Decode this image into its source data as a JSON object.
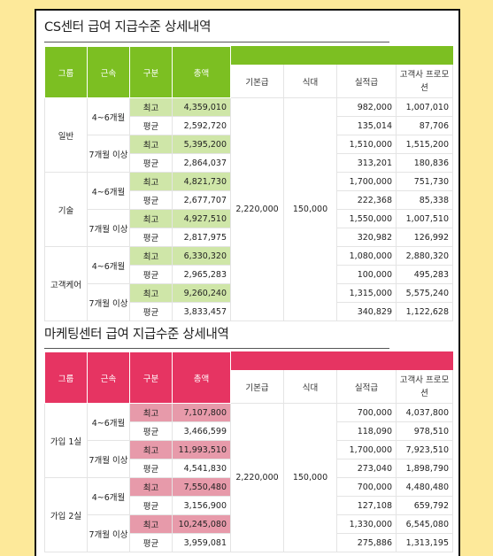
{
  "theme": {
    "cs_header": "#7cbf22",
    "cs_high": "#cfe6a8",
    "mk_header": "#e63462",
    "mk_high": "#e79aaa"
  },
  "cs": {
    "title": "CS센터 급여 지급수준 상세내역",
    "headers": {
      "group": "그룹",
      "tenure": "근속",
      "type": "구분",
      "amount": "총액",
      "base": "기본급",
      "meal": "식대",
      "perf": "실적급",
      "promo": "고객사 프로모션"
    },
    "base": "2,220,000",
    "meal": "150,000",
    "groups": [
      {
        "name": "일반",
        "tenures": [
          {
            "label": "4~6개월",
            "rows": [
              {
                "kind": "최고",
                "total": "4,359,010",
                "perf": "982,000",
                "promo": "1,007,010"
              },
              {
                "kind": "평균",
                "total": "2,592,720",
                "perf": "135,014",
                "promo": "87,706"
              }
            ]
          },
          {
            "label": "7개월 이상",
            "rows": [
              {
                "kind": "최고",
                "total": "5,395,200",
                "perf": "1,510,000",
                "promo": "1,515,200"
              },
              {
                "kind": "평균",
                "total": "2,864,037",
                "perf": "313,201",
                "promo": "180,836"
              }
            ]
          }
        ]
      },
      {
        "name": "기술",
        "tenures": [
          {
            "label": "4~6개월",
            "rows": [
              {
                "kind": "최고",
                "total": "4,821,730",
                "perf": "1,700,000",
                "promo": "751,730"
              },
              {
                "kind": "평균",
                "total": "2,677,707",
                "perf": "222,368",
                "promo": "85,338"
              }
            ]
          },
          {
            "label": "7개월 이상",
            "rows": [
              {
                "kind": "최고",
                "total": "4,927,510",
                "perf": "1,550,000",
                "promo": "1,007,510"
              },
              {
                "kind": "평균",
                "total": "2,817,975",
                "perf": "320,982",
                "promo": "126,992"
              }
            ]
          }
        ]
      },
      {
        "name": "고객케어",
        "tenures": [
          {
            "label": "4~6개월",
            "rows": [
              {
                "kind": "최고",
                "total": "6,330,320",
                "perf": "1,080,000",
                "promo": "2,880,320"
              },
              {
                "kind": "평균",
                "total": "2,965,283",
                "perf": "100,000",
                "promo": "495,283"
              }
            ]
          },
          {
            "label": "7개월 이상",
            "rows": [
              {
                "kind": "최고",
                "total": "9,260,240",
                "perf": "1,315,000",
                "promo": "5,575,240"
              },
              {
                "kind": "평균",
                "total": "3,833,457",
                "perf": "340,829",
                "promo": "1,122,628"
              }
            ]
          }
        ]
      }
    ]
  },
  "mk": {
    "title": "마케팅센터 급여 지급수준 상세내역",
    "headers": {
      "group": "그룹",
      "tenure": "근속",
      "type": "구분",
      "amount": "총액",
      "base": "기본급",
      "meal": "식대",
      "perf": "실적급",
      "promo": "고객사 프로모션"
    },
    "base": "2,220,000",
    "meal": "150,000",
    "groups": [
      {
        "name": "가입 1실",
        "tenures": [
          {
            "label": "4~6개월",
            "rows": [
              {
                "kind": "최고",
                "total": "7,107,800",
                "perf": "700,000",
                "promo": "4,037,800"
              },
              {
                "kind": "평균",
                "total": "3,466,599",
                "perf": "118,090",
                "promo": "978,510"
              }
            ]
          },
          {
            "label": "7개월 이상",
            "rows": [
              {
                "kind": "최고",
                "total": "11,993,510",
                "perf": "1,700,000",
                "promo": "7,923,510"
              },
              {
                "kind": "평균",
                "total": "4,541,830",
                "perf": "273,040",
                "promo": "1,898,790"
              }
            ]
          }
        ]
      },
      {
        "name": "가입 2실",
        "tenures": [
          {
            "label": "4~6개월",
            "rows": [
              {
                "kind": "최고",
                "total": "7,550,480",
                "perf": "700,000",
                "promo": "4,480,480"
              },
              {
                "kind": "평균",
                "total": "3,156,900",
                "perf": "127,108",
                "promo": "659,792"
              }
            ]
          },
          {
            "label": "7개월 이상",
            "rows": [
              {
                "kind": "최고",
                "total": "10,245,080",
                "perf": "1,330,000",
                "promo": "6,545,080"
              },
              {
                "kind": "평균",
                "total": "3,959,081",
                "perf": "275,886",
                "promo": "1,313,195"
              }
            ]
          }
        ]
      }
    ]
  }
}
